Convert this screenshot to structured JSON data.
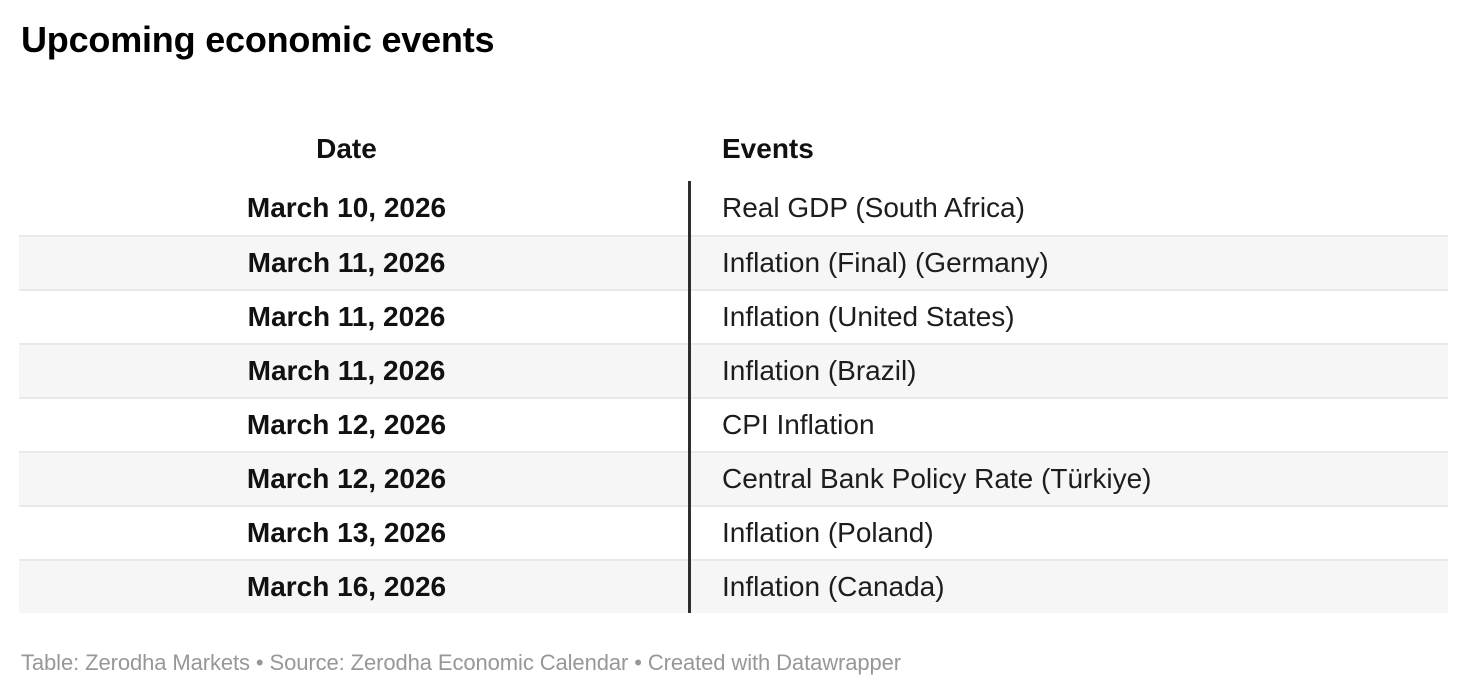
{
  "header": {
    "title": "Upcoming economic events"
  },
  "chart_data": {
    "type": "table",
    "title": "Upcoming economic events",
    "columns": [
      "Date",
      "Events"
    ],
    "rows": [
      [
        "March 10, 2026",
        "Real GDP (South Africa)"
      ],
      [
        "March 11, 2026",
        "Inflation (Final) (Germany)"
      ],
      [
        "March 11, 2026",
        "Inflation (United States)"
      ],
      [
        "March 11, 2026",
        "Inflation (Brazil)"
      ],
      [
        "March 12, 2026",
        "CPI Inflation"
      ],
      [
        "March 12, 2026",
        "Central Bank Policy Rate (Türkiye)"
      ],
      [
        "March 13, 2026",
        "Inflation (Poland)"
      ],
      [
        "March 16, 2026",
        "Inflation (Canada)"
      ]
    ],
    "layout": {
      "date_column_align": "center",
      "date_column_weight": "bold",
      "events_column_align": "left",
      "striped_rows": true,
      "column_divider": true,
      "legend": "none"
    }
  },
  "footer": {
    "text": "Table: Zerodha Markets • Source: Zerodha Economic Calendar • Created with Datawrapper"
  },
  "colors": {
    "title_text": "#000000",
    "header_rule": "#2e2e2e",
    "column_divider": "#2e2e2e",
    "row_alt_background": "#f6f6f6",
    "row_separator": "#e9e9e9",
    "body_text": "#1d1d1d",
    "footer_text": "#979797"
  }
}
